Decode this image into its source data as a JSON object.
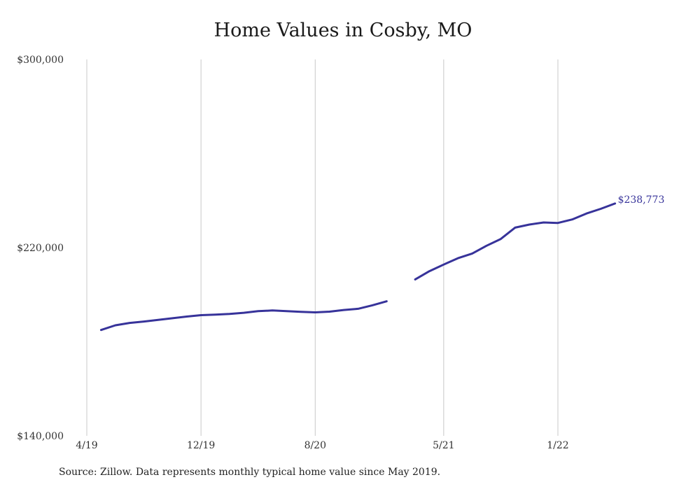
{
  "chart_data": {
    "type": "line",
    "title": "Home Values in Cosby, MO",
    "xlabel": "",
    "ylabel": "",
    "ylim": [
      140000,
      300000
    ],
    "yticks": [
      140000,
      220000,
      300000
    ],
    "ytick_labels": [
      "$140,000",
      "$220,000",
      "$300,000"
    ],
    "xticks": [
      "2019-04",
      "2019-12",
      "2020-08",
      "2021-05",
      "2022-01"
    ],
    "xtick_labels": [
      "4/19",
      "12/19",
      "8/20",
      "5/21",
      "1/22"
    ],
    "grid": "vertical",
    "line_color": "#37339a",
    "series": [
      {
        "points": [
          [
            "2019-05",
            185000
          ],
          [
            "2019-06",
            187000
          ],
          [
            "2019-07",
            188000
          ],
          [
            "2019-08",
            188600
          ],
          [
            "2019-09",
            189300
          ],
          [
            "2019-10",
            190000
          ],
          [
            "2019-11",
            190700
          ],
          [
            "2019-12",
            191300
          ],
          [
            "2020-01",
            191500
          ],
          [
            "2020-02",
            191800
          ],
          [
            "2020-03",
            192300
          ],
          [
            "2020-04",
            193000
          ],
          [
            "2020-05",
            193300
          ],
          [
            "2020-06",
            193000
          ],
          [
            "2020-07",
            192700
          ],
          [
            "2020-08",
            192500
          ],
          [
            "2020-09",
            192800
          ],
          [
            "2020-10",
            193500
          ],
          [
            "2020-11",
            194000
          ],
          [
            "2020-12",
            195500
          ],
          [
            "2021-01",
            197200
          ],
          [
            "2021-02",
            null
          ],
          [
            "2021-03",
            206500
          ],
          [
            "2021-04",
            210000
          ],
          [
            "2021-05",
            212800
          ],
          [
            "2021-06",
            215500
          ],
          [
            "2021-07",
            217500
          ],
          [
            "2021-08",
            220800
          ],
          [
            "2021-09",
            223700
          ],
          [
            "2021-10",
            228500
          ],
          [
            "2021-11",
            229800
          ],
          [
            "2021-12",
            230700
          ],
          [
            "2022-01",
            230500
          ],
          [
            "2022-02",
            232000
          ],
          [
            "2022-03",
            234500
          ],
          [
            "2022-04",
            236500
          ],
          [
            "2022-05",
            238773
          ]
        ]
      }
    ],
    "end_label": "$238,773"
  },
  "footer": {
    "source": "Source: Zillow. Data represents monthly typical home value since May 2019."
  }
}
